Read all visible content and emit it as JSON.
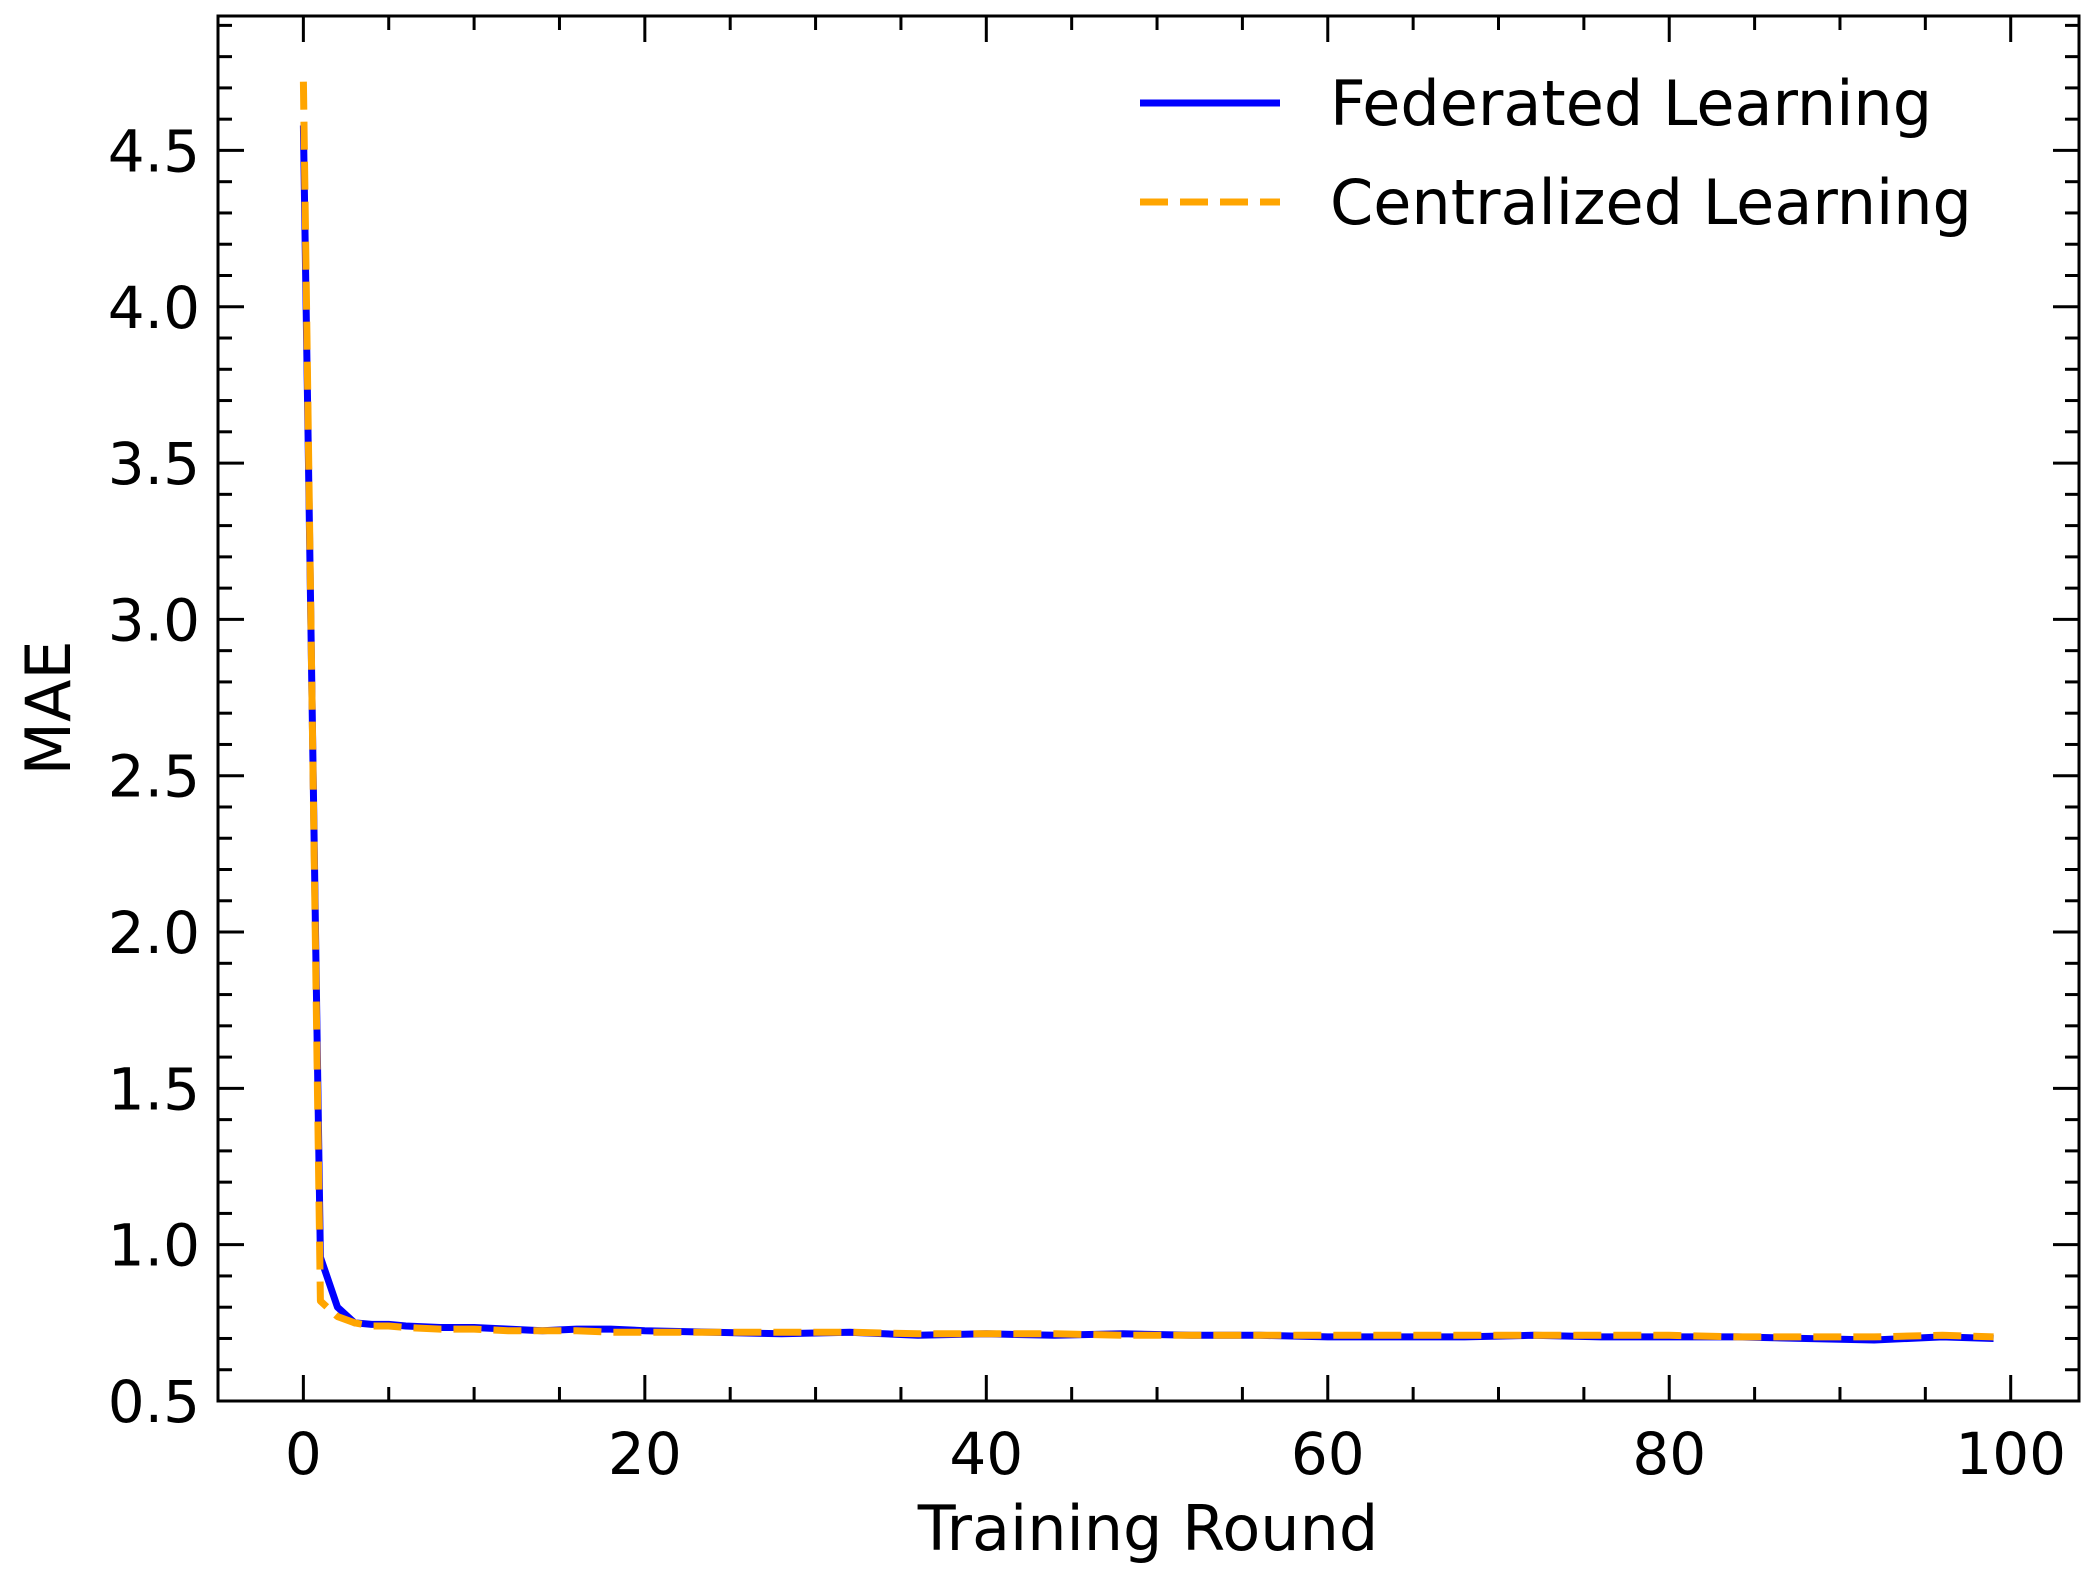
{
  "chart_data": {
    "type": "line",
    "title": "",
    "xlabel": "Training Round",
    "ylabel": "MAE",
    "xlim": [
      -5,
      104
    ],
    "ylim": [
      0.5,
      4.93
    ],
    "xticks": [
      0,
      20,
      40,
      60,
      80,
      100
    ],
    "xtick_labels": [
      "0",
      "20",
      "40",
      "60",
      "80",
      "100"
    ],
    "yticks": [
      0.5,
      1.0,
      1.5,
      2.0,
      2.5,
      3.0,
      3.5,
      4.0,
      4.5
    ],
    "ytick_labels": [
      "0.5",
      "1.0",
      "1.5",
      "2.0",
      "2.5",
      "3.0",
      "3.5",
      "4.0",
      "4.5"
    ],
    "grid": false,
    "legend_position": "top-right",
    "series": [
      {
        "name": "Federated Learning",
        "color": "#0000ff",
        "style": "solid",
        "x": [
          0,
          1,
          2,
          3,
          4,
          5,
          6,
          8,
          10,
          12,
          14,
          16,
          18,
          20,
          24,
          28,
          32,
          36,
          40,
          44,
          48,
          52,
          56,
          60,
          64,
          68,
          72,
          76,
          80,
          84,
          88,
          92,
          96,
          99
        ],
        "values": [
          4.58,
          0.96,
          0.8,
          0.75,
          0.745,
          0.745,
          0.74,
          0.735,
          0.735,
          0.73,
          0.725,
          0.73,
          0.73,
          0.725,
          0.72,
          0.715,
          0.72,
          0.71,
          0.715,
          0.71,
          0.715,
          0.71,
          0.71,
          0.705,
          0.705,
          0.705,
          0.71,
          0.705,
          0.705,
          0.705,
          0.7,
          0.695,
          0.705,
          0.7
        ]
      },
      {
        "name": "Centralized Learning",
        "color": "#ffa500",
        "style": "dashed",
        "x": [
          0,
          1,
          2,
          3,
          4,
          5,
          6,
          8,
          10,
          12,
          14,
          16,
          18,
          20,
          24,
          28,
          32,
          36,
          40,
          44,
          48,
          52,
          56,
          60,
          64,
          68,
          72,
          76,
          80,
          84,
          88,
          92,
          96,
          99
        ],
        "values": [
          4.72,
          0.82,
          0.77,
          0.75,
          0.74,
          0.74,
          0.735,
          0.73,
          0.73,
          0.725,
          0.725,
          0.725,
          0.72,
          0.72,
          0.72,
          0.72,
          0.72,
          0.715,
          0.715,
          0.715,
          0.71,
          0.71,
          0.71,
          0.71,
          0.71,
          0.71,
          0.71,
          0.71,
          0.71,
          0.705,
          0.705,
          0.705,
          0.71,
          0.705
        ]
      }
    ]
  }
}
